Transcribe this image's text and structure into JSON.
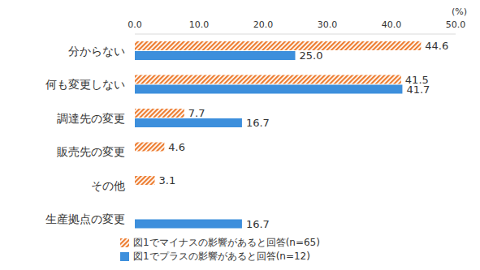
{
  "chart_data": {
    "type": "bar",
    "orientation": "horizontal",
    "x_label": "(%)",
    "categories": [
      "分からない",
      "何も変更しない",
      "調達先の変更",
      "販売先の変更",
      "その他",
      "生産拠点の変更"
    ],
    "series": [
      {
        "name": "図1でマイナスの影響があると回答(n=65)",
        "color": "#ed7d31",
        "values": [
          44.6,
          41.5,
          7.7,
          4.6,
          3.1,
          null
        ],
        "value_labels": [
          "44.6",
          "41.5",
          "7.7",
          "4.6",
          "3.1",
          null
        ]
      },
      {
        "name": "図1でプラスの影響があると回答(n=12)",
        "color": "#3d8fdc",
        "values": [
          25.0,
          41.7,
          16.7,
          null,
          null,
          16.7
        ],
        "value_labels": [
          "25.0",
          "41.7",
          "16.7",
          null,
          null,
          "16.7"
        ]
      }
    ],
    "xlim": [
      0,
      50
    ],
    "xticks": [
      {
        "value": 0,
        "label": "0.0"
      },
      {
        "value": 10,
        "label": "10.0"
      },
      {
        "value": 20,
        "label": "20.0"
      },
      {
        "value": 30,
        "label": "30.0"
      },
      {
        "value": 40,
        "label": "40.0"
      },
      {
        "value": 50,
        "label": "50.0"
      }
    ],
    "grid": false,
    "data_labels": true,
    "legend": "bottom"
  }
}
